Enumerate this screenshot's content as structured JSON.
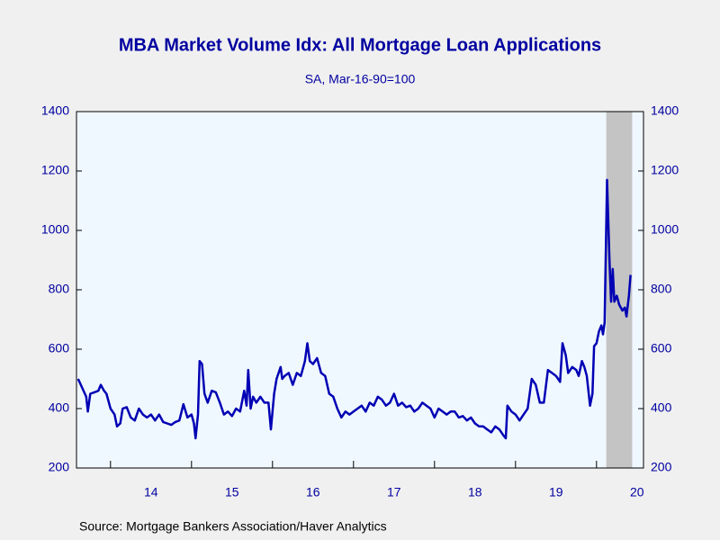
{
  "chart_data": {
    "type": "line",
    "title": "MBA Market Volume Idx: All Mortgage Loan Applications",
    "subtitle": "SA, Mar-16-90=100",
    "source": "Source:  Mortgage Bankers Association/Haver Analytics",
    "color": "#0000b4",
    "shading": [
      20.12,
      20.44
    ],
    "shading_color": "#c4c4c4",
    "x": [
      13.6,
      13.65,
      13.7,
      13.72,
      13.75,
      13.8,
      13.85,
      13.88,
      13.92,
      13.95,
      14.0,
      14.05,
      14.08,
      14.12,
      14.15,
      14.2,
      14.25,
      14.3,
      14.35,
      14.4,
      14.45,
      14.5,
      14.55,
      14.6,
      14.65,
      14.7,
      14.75,
      14.8,
      14.85,
      14.9,
      14.95,
      15.0,
      15.03,
      15.05,
      15.08,
      15.1,
      15.13,
      15.16,
      15.2,
      15.25,
      15.3,
      15.35,
      15.4,
      15.45,
      15.5,
      15.55,
      15.6,
      15.65,
      15.68,
      15.7,
      15.73,
      15.76,
      15.8,
      15.85,
      15.9,
      15.95,
      15.98,
      16.02,
      16.05,
      16.1,
      16.12,
      16.15,
      16.2,
      16.25,
      16.3,
      16.35,
      16.4,
      16.43,
      16.46,
      16.5,
      16.55,
      16.6,
      16.65,
      16.7,
      16.75,
      16.8,
      16.85,
      16.9,
      16.95,
      17.0,
      17.05,
      17.1,
      17.15,
      17.2,
      17.25,
      17.3,
      17.35,
      17.4,
      17.45,
      17.5,
      17.55,
      17.6,
      17.65,
      17.7,
      17.75,
      17.8,
      17.85,
      17.9,
      17.95,
      18.0,
      18.05,
      18.1,
      18.15,
      18.2,
      18.25,
      18.3,
      18.35,
      18.4,
      18.45,
      18.5,
      18.55,
      18.6,
      18.65,
      18.7,
      18.75,
      18.8,
      18.85,
      18.88,
      18.9,
      18.95,
      19.0,
      19.05,
      19.1,
      19.15,
      19.2,
      19.25,
      19.3,
      19.35,
      19.4,
      19.45,
      19.5,
      19.55,
      19.58,
      19.62,
      19.65,
      19.7,
      19.75,
      19.78,
      19.82,
      19.85,
      19.88,
      19.9,
      19.92,
      19.95,
      19.97,
      20.0,
      20.03,
      20.06,
      20.08,
      20.1,
      20.13,
      20.16,
      20.18,
      20.2,
      20.22,
      20.25,
      20.28,
      20.32,
      20.35,
      20.37,
      20.4,
      20.42
    ],
    "values": [
      500,
      470,
      440,
      390,
      450,
      455,
      460,
      480,
      460,
      450,
      400,
      380,
      340,
      350,
      400,
      405,
      370,
      360,
      400,
      380,
      370,
      380,
      360,
      380,
      355,
      350,
      345,
      355,
      360,
      415,
      370,
      380,
      350,
      300,
      380,
      560,
      550,
      450,
      420,
      460,
      455,
      420,
      380,
      390,
      375,
      400,
      390,
      460,
      410,
      530,
      400,
      440,
      420,
      440,
      420,
      420,
      330,
      450,
      500,
      540,
      500,
      510,
      520,
      480,
      520,
      510,
      560,
      620,
      560,
      550,
      570,
      520,
      510,
      450,
      440,
      400,
      370,
      390,
      380,
      390,
      400,
      410,
      390,
      420,
      410,
      440,
      430,
      410,
      420,
      450,
      410,
      420,
      405,
      410,
      390,
      400,
      420,
      410,
      400,
      370,
      400,
      390,
      380,
      390,
      390,
      370,
      375,
      360,
      370,
      350,
      340,
      340,
      330,
      320,
      340,
      330,
      310,
      300,
      410,
      390,
      380,
      360,
      380,
      400,
      500,
      480,
      420,
      420,
      530,
      520,
      510,
      490,
      620,
      580,
      520,
      540,
      530,
      510,
      560,
      540,
      510,
      460,
      410,
      450,
      610,
      620,
      660,
      680,
      650,
      690,
      1170,
      900,
      760,
      870,
      760,
      780,
      750,
      730,
      740,
      710,
      780,
      850
    ],
    "xlim": [
      13.58,
      20.58
    ],
    "xticks": [
      {
        "value": 14.5,
        "label": "14"
      },
      {
        "value": 15.5,
        "label": "15"
      },
      {
        "value": 16.5,
        "label": "16"
      },
      {
        "value": 17.5,
        "label": "17"
      },
      {
        "value": 18.5,
        "label": "18"
      },
      {
        "value": 19.5,
        "label": "19"
      },
      {
        "value": 20.5,
        "label": "20"
      }
    ],
    "xtick_marks": [
      14,
      15,
      16,
      17,
      18,
      19,
      20
    ],
    "ylim": [
      200,
      1400
    ],
    "yticks": [
      200,
      400,
      600,
      800,
      1000,
      1200,
      1400
    ],
    "y2lim": [
      200,
      1400
    ],
    "y2ticks": [
      200,
      400,
      600,
      800,
      1000,
      1200,
      1400
    ]
  }
}
